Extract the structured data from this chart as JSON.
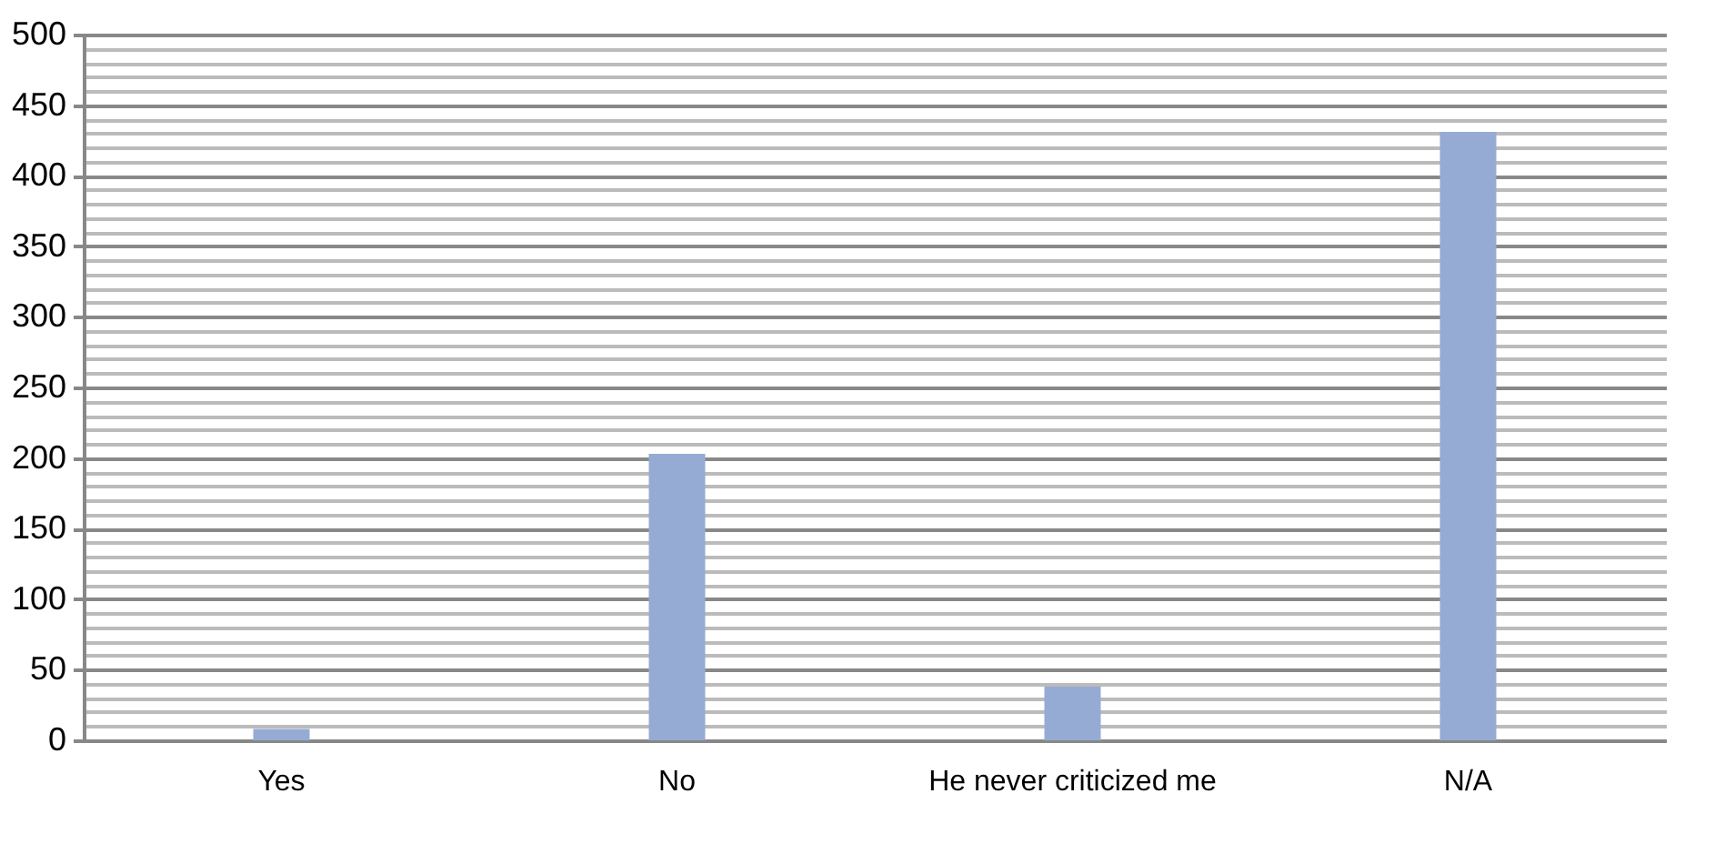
{
  "chart_data": {
    "type": "bar",
    "categories": [
      "Yes",
      "No",
      "He never criticized me",
      "N/A"
    ],
    "values": [
      8,
      203,
      38,
      431
    ],
    "color": "#95abd4",
    "ylim": [
      0,
      500
    ],
    "yticks": [
      0,
      {
        "value": 10,
        "label": null
      },
      {
        "value": 20,
        "label": null
      },
      {
        "value": 30,
        "label": null
      },
      {
        "value": 40,
        "label": null
      },
      50,
      {
        "value": 60,
        "label": null
      },
      {
        "value": 70,
        "label": null
      },
      {
        "value": 80,
        "label": null
      },
      {
        "value": 90,
        "label": null
      },
      100,
      {
        "value": 110,
        "label": null
      },
      {
        "value": 120,
        "label": null
      },
      {
        "value": 130,
        "label": null
      },
      {
        "value": 140,
        "label": null
      },
      150,
      {
        "value": 160,
        "label": null
      },
      {
        "value": 170,
        "label": null
      },
      {
        "value": 180,
        "label": null
      },
      {
        "value": 190,
        "label": null
      },
      200,
      {
        "value": 210,
        "label": null
      },
      {
        "value": 220,
        "label": null
      },
      {
        "value": 230,
        "label": null
      },
      {
        "value": 240,
        "label": null
      },
      250,
      {
        "value": 260,
        "label": null
      },
      {
        "value": 270,
        "label": null
      },
      {
        "value": 280,
        "label": null
      },
      {
        "value": 290,
        "label": null
      },
      300,
      {
        "value": 310,
        "label": null
      },
      {
        "value": 320,
        "label": null
      },
      {
        "value": 330,
        "label": null
      },
      {
        "value": 340,
        "label": null
      },
      350,
      {
        "value": 360,
        "label": null
      },
      {
        "value": 370,
        "label": null
      },
      {
        "value": 380,
        "label": null
      },
      {
        "value": 390,
        "label": null
      },
      400,
      {
        "value": 410,
        "label": null
      },
      {
        "value": 420,
        "label": null
      },
      {
        "value": 430,
        "label": null
      },
      {
        "value": 440,
        "label": null
      },
      450,
      {
        "value": 460,
        "label": null
      },
      {
        "value": 470,
        "label": null
      },
      {
        "value": 480,
        "label": null
      },
      {
        "value": 490,
        "label": null
      },
      500
    ],
    "grid": "y"
  }
}
